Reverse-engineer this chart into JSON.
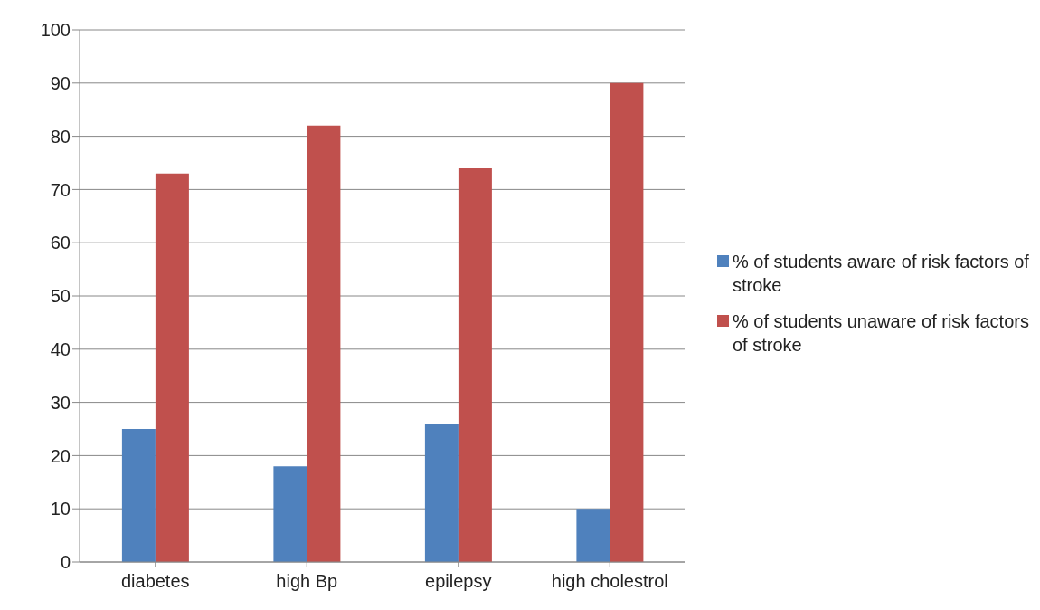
{
  "chart_data": {
    "type": "bar",
    "categories": [
      "diabetes",
      "high Bp",
      "epilepsy",
      "high cholestrol"
    ],
    "series": [
      {
        "name": "% of students aware of risk factors of stroke",
        "color": "#4f81bd",
        "values": [
          25,
          18,
          26,
          10
        ]
      },
      {
        "name": "% of students unaware of risk factors of stroke",
        "color": "#c0504d",
        "values": [
          73,
          82,
          74,
          90
        ]
      }
    ],
    "ylim": [
      0,
      100
    ],
    "yticks": [
      0,
      10,
      20,
      30,
      40,
      50,
      60,
      70,
      80,
      90,
      100
    ],
    "grid": "y",
    "legend": "right"
  }
}
